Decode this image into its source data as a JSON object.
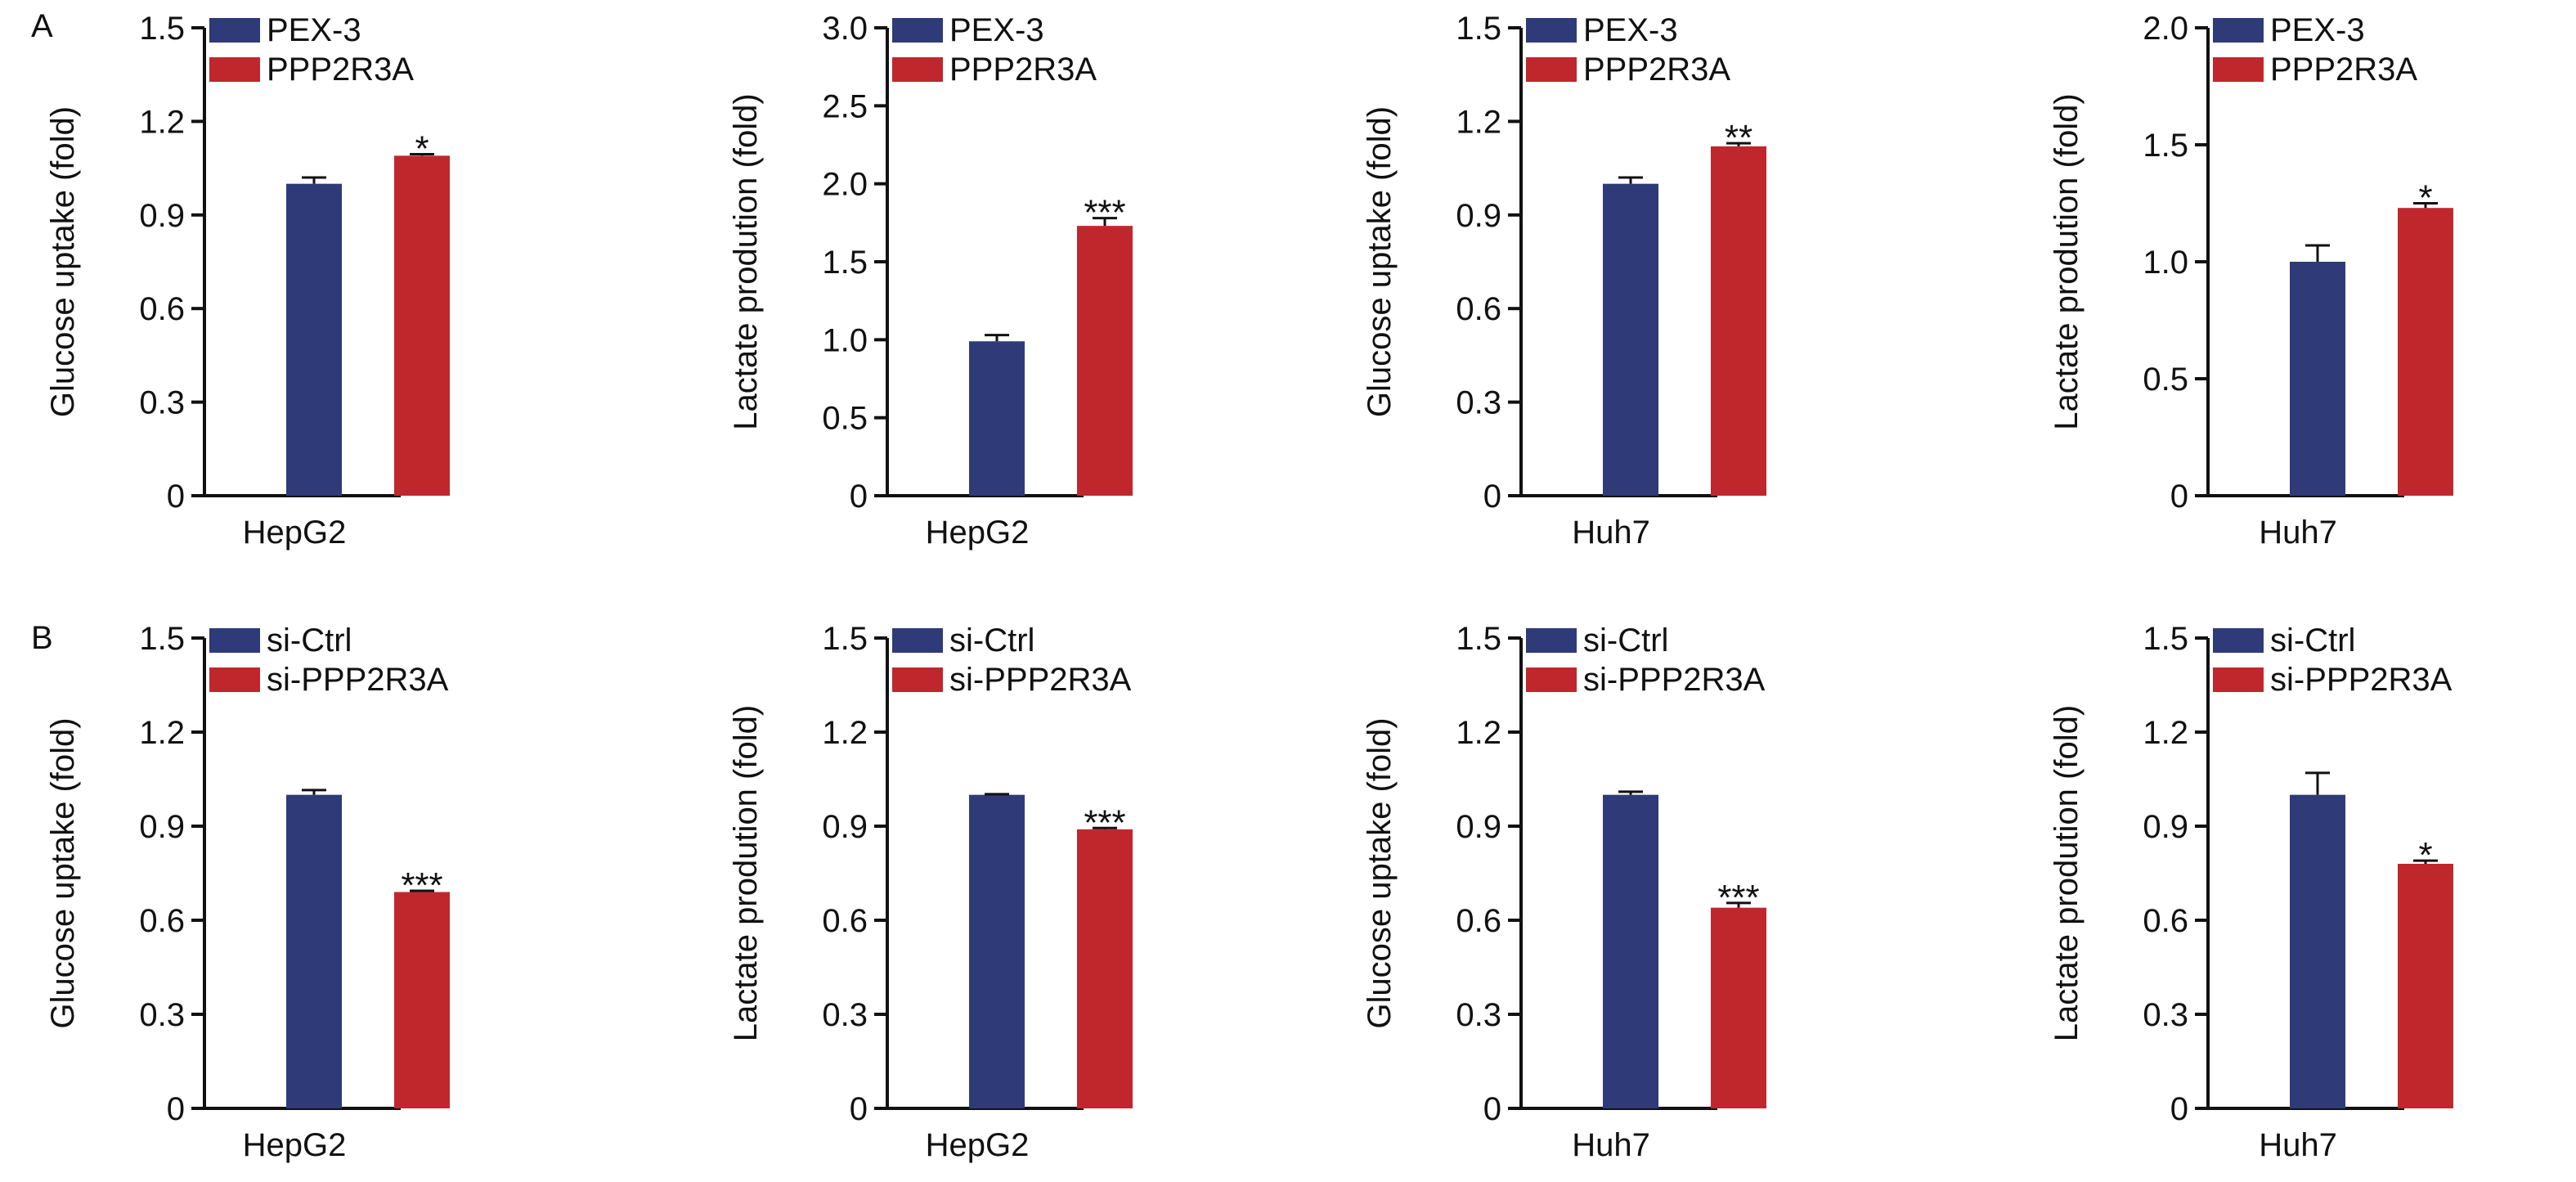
{
  "panels": {
    "a": "A",
    "b": "B"
  },
  "colors": {
    "blue": "#2E3B78",
    "red": "#C0272D",
    "axis": "#111111"
  },
  "chart_data": [
    {
      "type": "bar",
      "panel": "A",
      "categories": [
        "HepG2"
      ],
      "xlabel": "HepG2",
      "ylabel": "Glucose uptake (fold)",
      "ylim": [
        0,
        1.5
      ],
      "yticks": [
        "0",
        "0.3",
        "0.6",
        "0.9",
        "1.2",
        "1.5"
      ],
      "legend": "top-left",
      "series": [
        {
          "name": "PEX-3",
          "values": [
            1.0
          ],
          "error": [
            0.02
          ],
          "sig": ""
        },
        {
          "name": "PPP2R3A",
          "values": [
            1.09
          ],
          "error": [
            0.005
          ],
          "sig": "*"
        }
      ]
    },
    {
      "type": "bar",
      "panel": "A",
      "categories": [
        "HepG2"
      ],
      "xlabel": "HepG2",
      "ylabel": "Lactate prodution (fold)",
      "ylim": [
        0,
        3.0
      ],
      "yticks": [
        "0",
        "0.5",
        "1.0",
        "1.5",
        "2.0",
        "2.5",
        "3.0"
      ],
      "legend": "top-left",
      "series": [
        {
          "name": "PEX-3",
          "values": [
            0.99
          ],
          "error": [
            0.04
          ],
          "sig": ""
        },
        {
          "name": "PPP2R3A",
          "values": [
            1.73
          ],
          "error": [
            0.05
          ],
          "sig": "***"
        }
      ]
    },
    {
      "type": "bar",
      "panel": "A",
      "categories": [
        "Huh7"
      ],
      "xlabel": "Huh7",
      "ylabel": "Glucose uptake (fold)",
      "ylim": [
        0,
        1.5
      ],
      "yticks": [
        "0",
        "0.3",
        "0.6",
        "0.9",
        "1.2",
        "1.5"
      ],
      "legend": "top-left",
      "series": [
        {
          "name": "PEX-3",
          "values": [
            1.0
          ],
          "error": [
            0.02
          ],
          "sig": ""
        },
        {
          "name": "PPP2R3A",
          "values": [
            1.12
          ],
          "error": [
            0.01
          ],
          "sig": "**"
        }
      ]
    },
    {
      "type": "bar",
      "panel": "A",
      "categories": [
        "Huh7"
      ],
      "xlabel": "Huh7",
      "ylabel": "Lactate prodution (fold)",
      "ylim": [
        0,
        2.0
      ],
      "yticks": [
        "0",
        "0.5",
        "1.0",
        "1.5",
        "2.0"
      ],
      "legend": "top-left",
      "series": [
        {
          "name": "PEX-3",
          "values": [
            1.0
          ],
          "error": [
            0.07
          ],
          "sig": ""
        },
        {
          "name": "PPP2R3A",
          "values": [
            1.23
          ],
          "error": [
            0.02
          ],
          "sig": "*"
        }
      ]
    },
    {
      "type": "bar",
      "panel": "B",
      "categories": [
        "HepG2"
      ],
      "xlabel": "HepG2",
      "ylabel": "Glucose uptake (fold)",
      "ylim": [
        0,
        1.5
      ],
      "yticks": [
        "0",
        "0.3",
        "0.6",
        "0.9",
        "1.2",
        "1.5"
      ],
      "legend": "top-left",
      "series": [
        {
          "name": "si-Ctrl",
          "values": [
            1.0
          ],
          "error": [
            0.015
          ],
          "sig": ""
        },
        {
          "name": "si-PPP2R3A",
          "values": [
            0.69
          ],
          "error": [
            0.004
          ],
          "sig": "***"
        }
      ]
    },
    {
      "type": "bar",
      "panel": "B",
      "categories": [
        "HepG2"
      ],
      "xlabel": "HepG2",
      "ylabel": "Lactate prodution (fold)",
      "ylim": [
        0,
        1.5
      ],
      "yticks": [
        "0",
        "0.3",
        "0.6",
        "0.9",
        "1.2",
        "1.5"
      ],
      "legend": "top-left",
      "series": [
        {
          "name": "si-Ctrl",
          "values": [
            1.0
          ],
          "error": [
            0.002
          ],
          "sig": ""
        },
        {
          "name": "si-PPP2R3A",
          "values": [
            0.89
          ],
          "error": [
            0.004
          ],
          "sig": "***"
        }
      ]
    },
    {
      "type": "bar",
      "panel": "B",
      "categories": [
        "Huh7"
      ],
      "xlabel": "Huh7",
      "ylabel": "Glucose uptake (fold)",
      "ylim": [
        0,
        1.5
      ],
      "yticks": [
        "0",
        "0.3",
        "0.6",
        "0.9",
        "1.2",
        "1.5"
      ],
      "legend": "top-left",
      "series": [
        {
          "name": "si-Ctrl",
          "values": [
            1.0
          ],
          "error": [
            0.01
          ],
          "sig": ""
        },
        {
          "name": "si-PPP2R3A",
          "values": [
            0.64
          ],
          "error": [
            0.015
          ],
          "sig": "***"
        }
      ]
    },
    {
      "type": "bar",
      "panel": "B",
      "categories": [
        "Huh7"
      ],
      "xlabel": "Huh7",
      "ylabel": "Lactate prodution (fold)",
      "ylim": [
        0,
        1.5
      ],
      "yticks": [
        "0",
        "0.3",
        "0.6",
        "0.9",
        "1.2",
        "1.5"
      ],
      "legend": "top-left",
      "series": [
        {
          "name": "si-Ctrl",
          "values": [
            1.0
          ],
          "error": [
            0.07
          ],
          "sig": ""
        },
        {
          "name": "si-PPP2R3A",
          "values": [
            0.78
          ],
          "error": [
            0.01
          ],
          "sig": "*"
        }
      ]
    }
  ]
}
